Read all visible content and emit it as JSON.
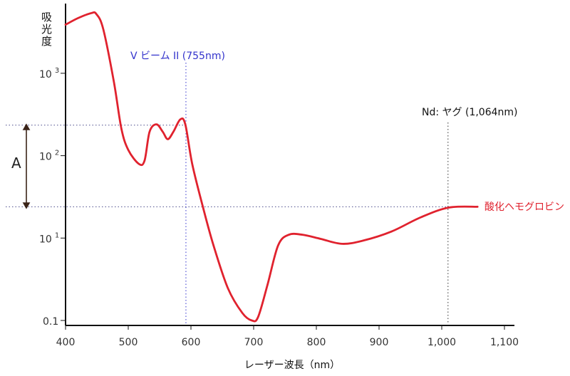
{
  "chart_data": {
    "type": "line",
    "title": "",
    "xlabel": "レーザー波長（nm）",
    "ylabel": "吸光度",
    "xlim": [
      400,
      1100
    ],
    "ylim_levels": [
      0,
      3
    ],
    "x_ticks": [
      400,
      500,
      600,
      700,
      800,
      900,
      1000,
      1100
    ],
    "x_tick_labels": [
      "400",
      "500",
      "600",
      "700",
      "800",
      "900",
      "1,000",
      "1,100"
    ],
    "y_ticks": [
      {
        "level": 0,
        "base": "0.1",
        "exp": ""
      },
      {
        "level": 1,
        "base": "10",
        "exp": "1"
      },
      {
        "level": 2,
        "base": "10",
        "exp": "2"
      },
      {
        "level": 3,
        "base": "10",
        "exp": "3"
      }
    ],
    "series": [
      {
        "name": "酸化ヘモグロビン",
        "color": "#e0222e",
        "x": [
          400,
          420,
          441,
          449,
          460,
          477,
          489,
          500,
          517,
          526,
          534,
          545,
          555,
          563,
          572,
          583,
          591,
          602,
          619,
          636,
          659,
          682,
          697,
          707,
          722,
          739,
          756,
          778,
          807,
          841,
          875,
          920,
          966,
          1011,
          1057
        ],
        "y_level": [
          3.59,
          3.67,
          3.73,
          3.72,
          3.54,
          2.9,
          2.33,
          2.07,
          1.9,
          1.94,
          2.29,
          2.38,
          2.29,
          2.2,
          2.29,
          2.44,
          2.38,
          1.9,
          1.38,
          0.91,
          0.39,
          0.09,
          0.0,
          0.04,
          0.43,
          0.91,
          1.04,
          1.04,
          0.99,
          0.93,
          0.97,
          1.08,
          1.25,
          1.37,
          1.38
        ]
      }
    ],
    "annotations": {
      "vbeam": {
        "label": "V ビーム II (755nm)",
        "x": 592,
        "color": "#3333cc"
      },
      "ndyag": {
        "label": "Nd: ヤグ (1,064nm)",
        "x": 1010,
        "color": "#333333"
      },
      "hlines": [
        2.37,
        1.38
      ],
      "arrow_label": "A"
    },
    "grid": false,
    "legend": "inline-right"
  }
}
